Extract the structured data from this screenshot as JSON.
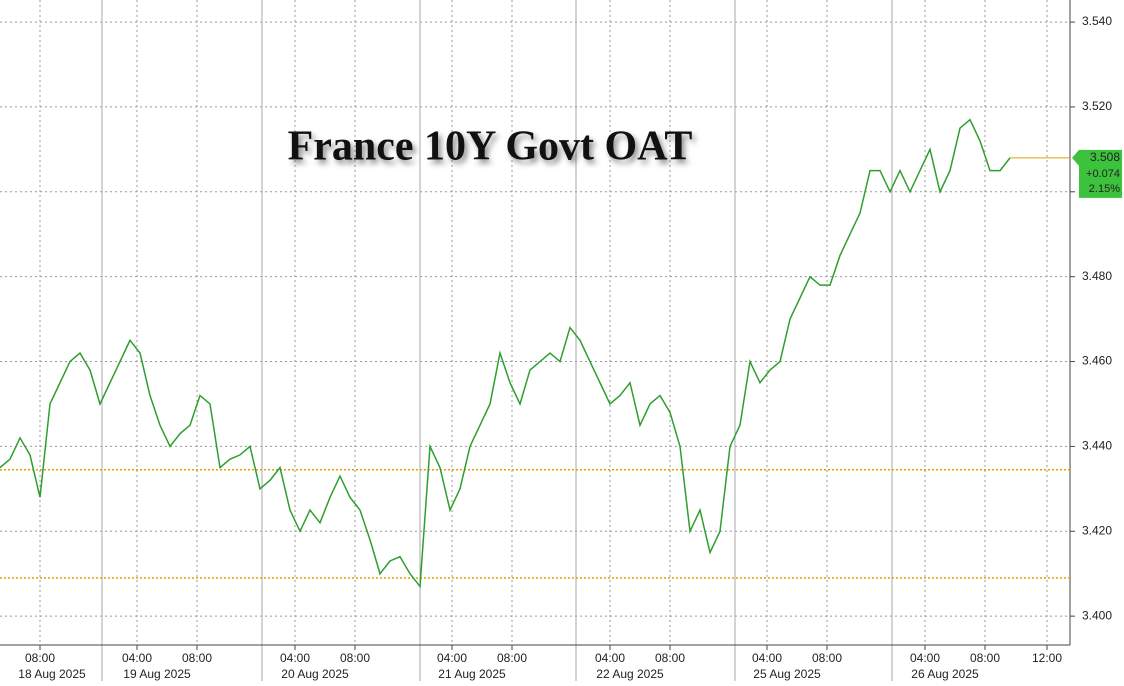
{
  "chart_data": {
    "type": "line",
    "title": "France 10Y Govt OAT",
    "x": [
      0,
      1,
      2,
      3,
      4,
      5,
      6,
      7,
      8,
      9,
      10,
      11,
      12,
      13,
      14,
      15,
      16,
      17,
      18,
      19,
      20,
      21,
      22,
      23,
      24,
      25,
      26,
      27,
      28,
      29,
      30,
      31,
      32,
      33,
      34,
      35,
      36,
      37,
      38,
      39,
      40,
      41,
      42,
      43,
      44,
      45,
      46,
      47,
      48,
      49,
      50,
      51,
      52,
      53,
      54,
      55,
      56,
      57,
      58,
      59,
      60,
      61,
      62,
      63,
      64,
      65,
      66,
      67,
      68,
      69,
      70,
      71,
      72,
      73,
      74,
      75,
      76,
      77,
      78,
      79,
      80,
      81,
      82,
      83,
      84,
      85,
      86,
      87,
      88,
      89,
      90,
      91,
      92,
      93,
      94,
      95,
      96,
      97,
      98,
      99,
      100,
      101
    ],
    "series": [
      {
        "name": "France 10Y Govt OAT",
        "color": "#2e9e2e",
        "values": [
          3.435,
          3.437,
          3.442,
          3.438,
          3.428,
          3.45,
          3.455,
          3.46,
          3.462,
          3.458,
          3.45,
          3.455,
          3.46,
          3.465,
          3.462,
          3.452,
          3.445,
          3.44,
          3.443,
          3.445,
          3.452,
          3.45,
          3.435,
          3.437,
          3.438,
          3.44,
          3.43,
          3.432,
          3.435,
          3.425,
          3.42,
          3.425,
          3.422,
          3.428,
          3.433,
          3.428,
          3.425,
          3.418,
          3.41,
          3.413,
          3.414,
          3.41,
          3.407,
          3.44,
          3.435,
          3.425,
          3.43,
          3.44,
          3.445,
          3.45,
          3.462,
          3.455,
          3.45,
          3.458,
          3.46,
          3.462,
          3.46,
          3.468,
          3.465,
          3.46,
          3.455,
          3.45,
          3.452,
          3.455,
          3.445,
          3.45,
          3.452,
          3.448,
          3.44,
          3.42,
          3.425,
          3.415,
          3.42,
          3.44,
          3.445,
          3.46,
          3.455,
          3.458,
          3.46,
          3.47,
          3.475,
          3.48,
          3.478,
          3.478,
          3.485,
          3.49,
          3.495,
          3.505,
          3.505,
          3.5,
          3.505,
          3.5,
          3.505,
          3.51,
          3.5,
          3.505,
          3.515,
          3.517,
          3.512,
          3.505,
          3.505,
          3.508
        ]
      }
    ],
    "xlim": [
      0,
      107
    ],
    "ylim": [
      3.3932,
      3.5452
    ],
    "yticks": [
      {
        "value": 3.4,
        "label": "3.400"
      },
      {
        "value": 3.42,
        "label": "3.420"
      },
      {
        "value": 3.44,
        "label": "3.440"
      },
      {
        "value": 3.46,
        "label": "3.460"
      },
      {
        "value": 3.48,
        "label": "3.480"
      },
      {
        "value": 3.5,
        "label": "3.500"
      },
      {
        "value": 3.52,
        "label": "3.520"
      },
      {
        "value": 3.54,
        "label": "3.540"
      }
    ],
    "xticks": [
      {
        "value": 4,
        "label": "08:00"
      },
      {
        "value": 13.7,
        "label": "04:00"
      },
      {
        "value": 19.7,
        "label": "08:00"
      },
      {
        "value": 29.5,
        "label": "04:00"
      },
      {
        "value": 35.5,
        "label": "08:00"
      },
      {
        "value": 45.2,
        "label": "04:00"
      },
      {
        "value": 51.2,
        "label": "08:00"
      },
      {
        "value": 61,
        "label": "04:00"
      },
      {
        "value": 67,
        "label": "08:00"
      },
      {
        "value": 76.7,
        "label": "04:00"
      },
      {
        "value": 82.7,
        "label": "08:00"
      },
      {
        "value": 92.5,
        "label": "04:00"
      },
      {
        "value": 98.5,
        "label": "08:00"
      },
      {
        "value": 104.7,
        "label": "12:00"
      }
    ],
    "date_labels": [
      {
        "value": 5.2,
        "label": "18 Aug 2025"
      },
      {
        "value": 15.7,
        "label": "19 Aug 2025"
      },
      {
        "value": 31.5,
        "label": "20 Aug 2025"
      },
      {
        "value": 47.2,
        "label": "21 Aug 2025"
      },
      {
        "value": 63,
        "label": "22 Aug 2025"
      },
      {
        "value": 78.7,
        "label": "25 Aug 2025"
      },
      {
        "value": 94.5,
        "label": "26 Aug 2025"
      }
    ],
    "day_breaks": [
      10.2,
      26.2,
      42,
      57.6,
      73.5,
      89.2
    ],
    "reference_lines": [
      3.4345,
      3.409
    ],
    "reference_color": "#e0a000",
    "last_value": {
      "value": 3.508,
      "label": "3.508"
    },
    "change": "+0.074",
    "change_pct": "2.15%",
    "grid": true
  }
}
